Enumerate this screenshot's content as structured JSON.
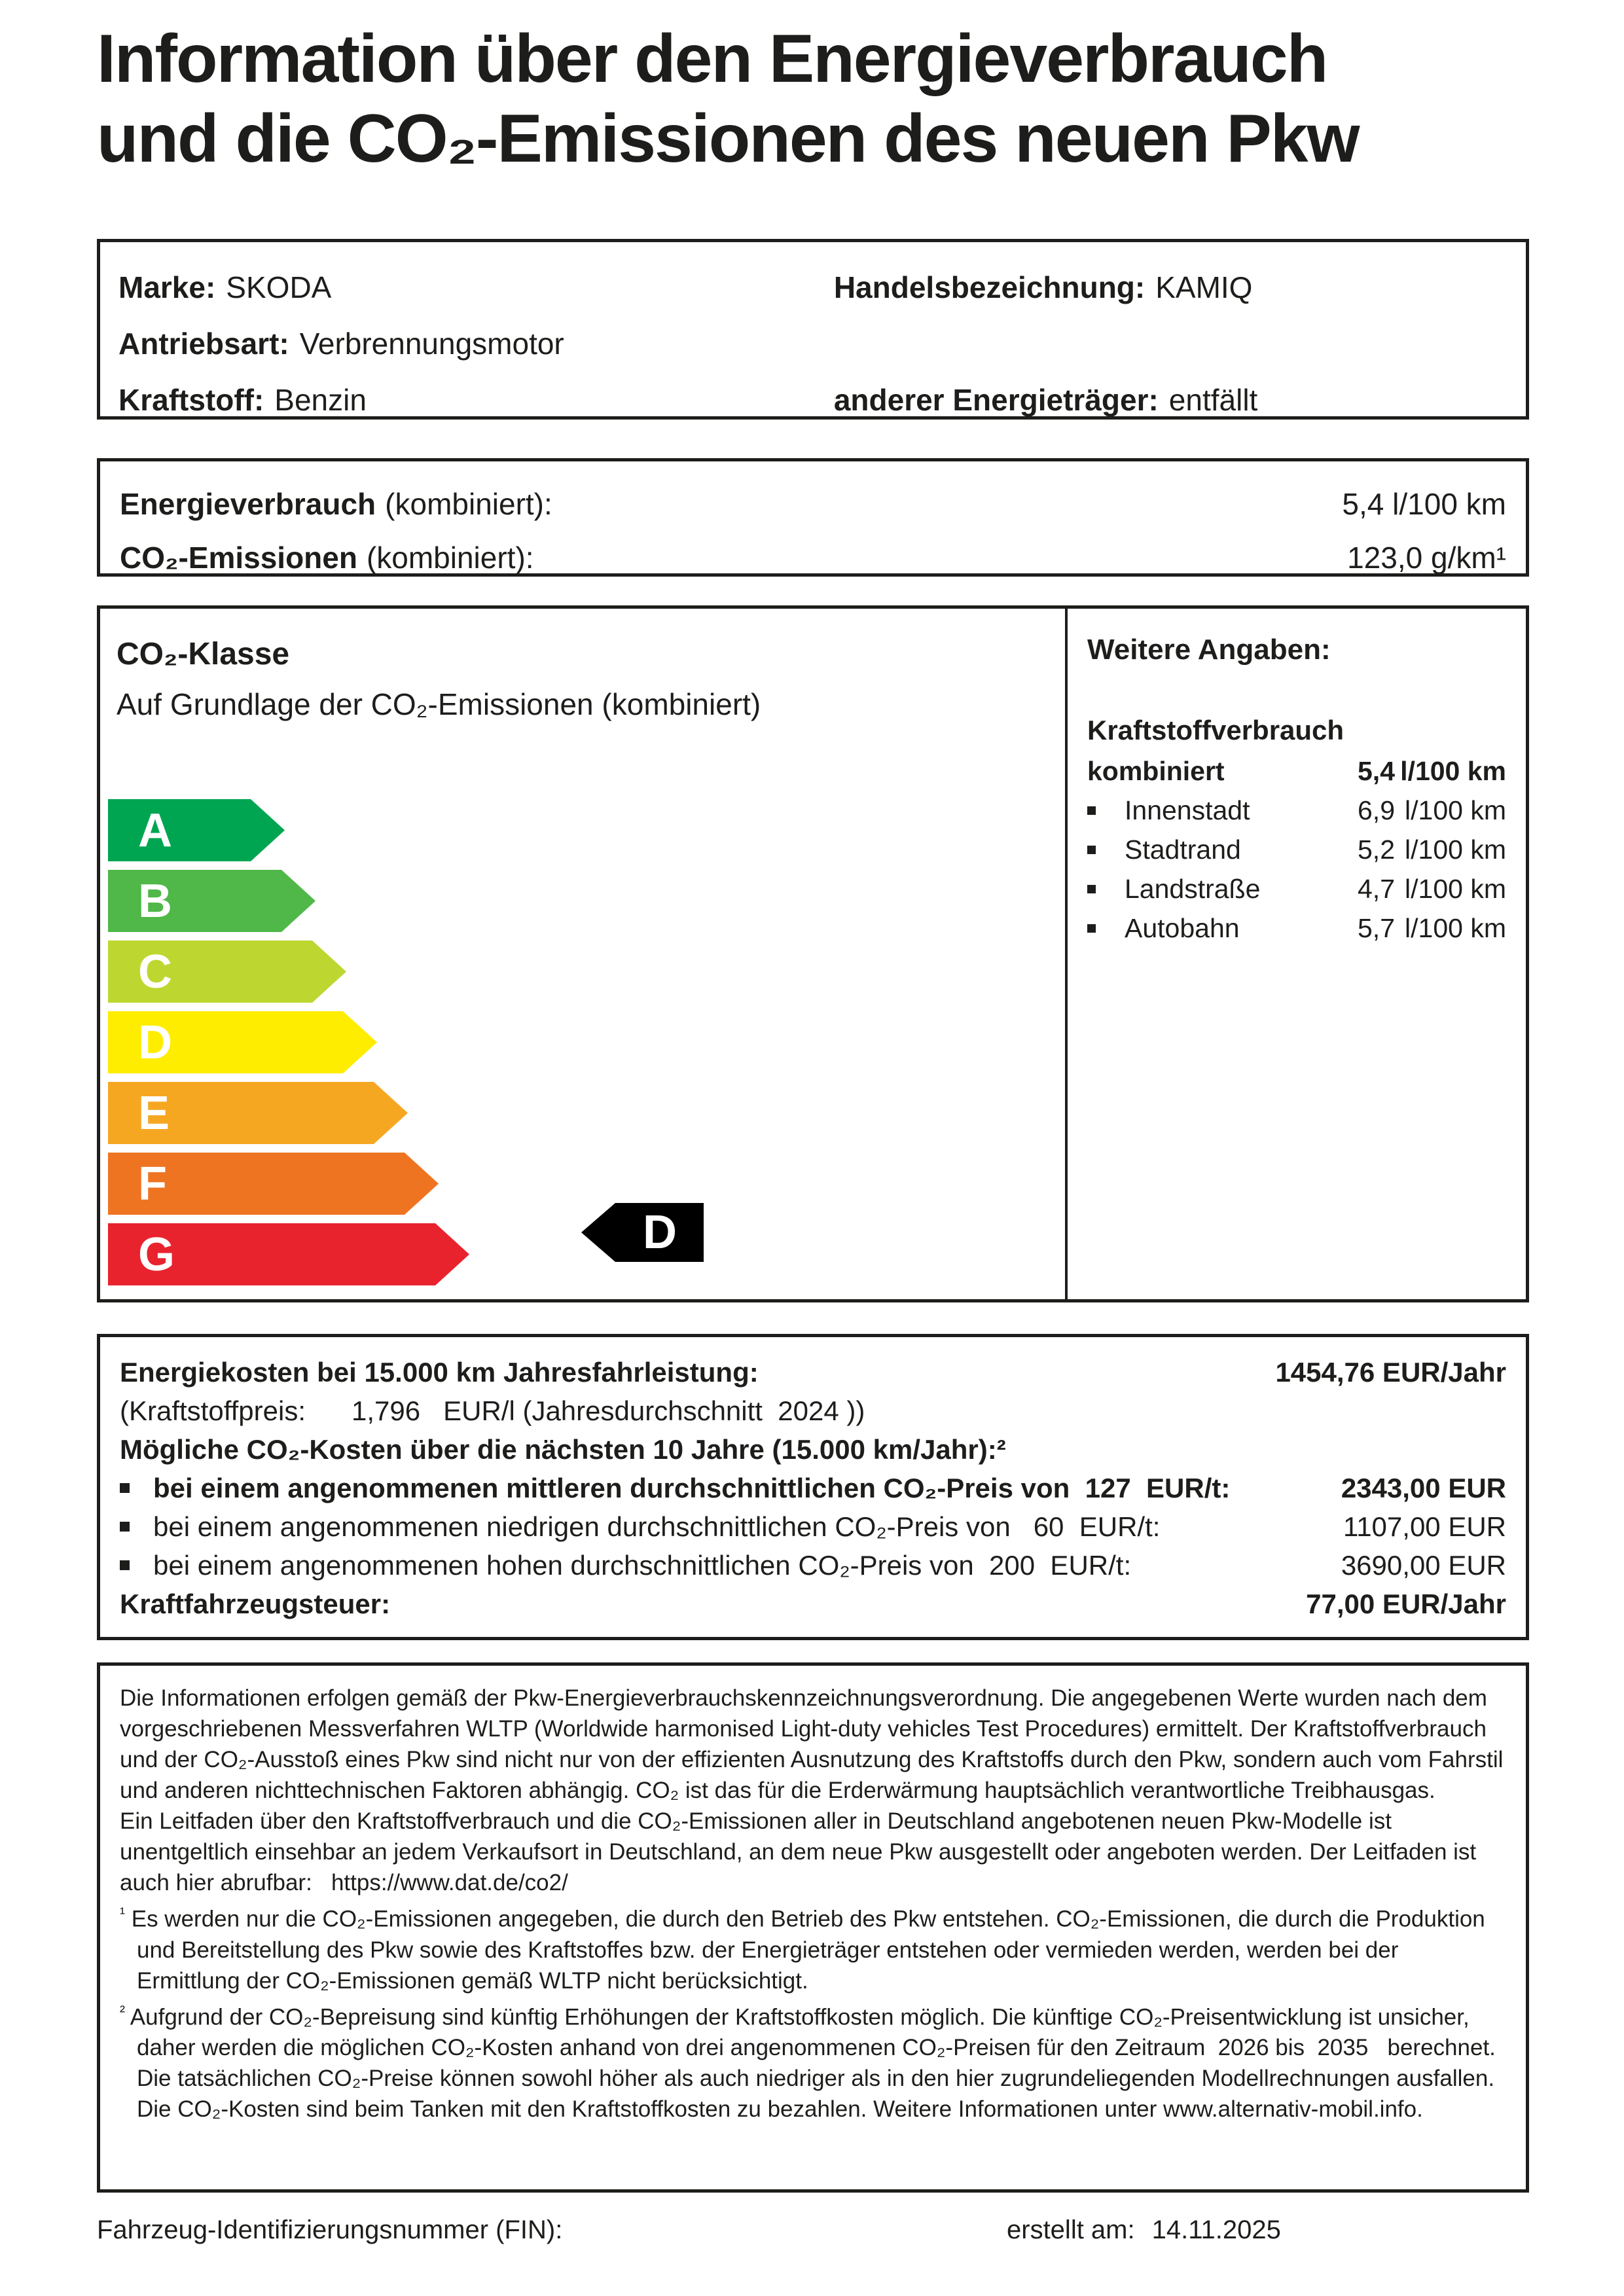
{
  "title": {
    "line1": "Information über den Energieverbrauch",
    "line2": "und die CO₂-Emissionen des neuen Pkw"
  },
  "vehicle": {
    "marke_label": "Marke:",
    "marke": "SKODA",
    "handels_label": "Handelsbezeichnung:",
    "handels": "KAMIQ",
    "antrieb_label": "Antriebsart:",
    "antrieb": "Verbrennungsmotor",
    "kraftstoff_label": "Kraftstoff:",
    "kraftstoff": "Benzin",
    "energietraeger_label": "anderer Energieträger:",
    "energietraeger": "entfällt"
  },
  "consumption": {
    "row1_label": "Energieverbrauch",
    "row1_paren": "(kombiniert):",
    "row1_value": "5,4 l/100 km",
    "row2_label": "CO₂-Emissionen",
    "row2_paren": "(kombiniert):",
    "row2_value": "123,0 g/km¹"
  },
  "co2class": {
    "heading": "CO₂-Klasse",
    "subtitle": "Auf Grundlage der CO₂-Emissionen (kombiniert)",
    "arrows": [
      {
        "letter": "A",
        "color": "#00a551"
      },
      {
        "letter": "B",
        "color": "#4fb848"
      },
      {
        "letter": "C",
        "color": "#bed730"
      },
      {
        "letter": "D",
        "color": "#ffed00"
      },
      {
        "letter": "E",
        "color": "#f6a722"
      },
      {
        "letter": "F",
        "color": "#ef7422"
      },
      {
        "letter": "G",
        "color": "#e8232d"
      }
    ],
    "indicator": {
      "letter": "D",
      "color": "#000000"
    }
  },
  "details": {
    "heading": "Weitere Angaben:",
    "subheading": "Kraftstoffverbrauch",
    "rows": [
      {
        "label": "kombiniert",
        "value": "5,4",
        "unit": "l/100 km"
      },
      {
        "label": "Innenstadt",
        "value": "6,9",
        "unit": "l/100 km"
      },
      {
        "label": "Stadtrand",
        "value": "5,2",
        "unit": "l/100 km"
      },
      {
        "label": "Landstraße",
        "value": "4,7",
        "unit": "l/100 km"
      },
      {
        "label": "Autobahn",
        "value": "5,7",
        "unit": "l/100 km"
      }
    ]
  },
  "costs": {
    "line1_label": "Energiekosten bei 15.000 km Jahresfahrleistung:",
    "line1_value": "1454,76 EUR/Jahr",
    "line2": "(Kraftstoffpreis:      1,796   EUR/l (Jahresdurchschnitt  2024 ))",
    "line3": "Mögliche CO₂-Kosten über die nächsten 10 Jahre (15.000 km/Jahr):²",
    "bullets": [
      {
        "text": "bei einem angenommenen mittleren durchschnittlichen CO₂-Preis von  127  EUR/t:",
        "value": "2343,00 EUR"
      },
      {
        "text": "bei einem angenommenen niedrigen durchschnittlichen CO₂-Preis von   60  EUR/t:",
        "value": "1107,00 EUR"
      },
      {
        "text": "bei einem angenommenen hohen durchschnittlichen CO₂-Preis von  200  EUR/t:",
        "value": "3690,00 EUR"
      }
    ],
    "tax_label": "Kraftfahrzeugsteuer:",
    "tax_value": "77,00 EUR/Jahr"
  },
  "legal": {
    "p1": "Die Informationen erfolgen gemäß der Pkw-Energieverbrauchskennzeichnungsverordnung. Die angegebenen Werte wurden nach dem vorgeschriebenen Messverfahren WLTP (Worldwide harmonised Light-duty vehicles Test Procedures) ermittelt. Der Kraftstoffverbrauch und der CO₂-Ausstoß eines Pkw sind nicht nur von der effizienten Ausnutzung des Kraftstoffs durch den Pkw, sondern auch vom Fahrstil und anderen nichttechnischen Faktoren abhängig. CO₂ ist das für die Erderwärmung hauptsächlich verantwortliche Treibhausgas.",
    "p2": "Ein Leitfaden über den Kraftstoffverbrauch und die CO₂-Emissionen aller in Deutschland angebotenen neuen Pkw-Modelle ist unentgeltlich einsehbar an jedem Verkaufsort in Deutschland, an dem neue Pkw ausgestellt oder angeboten werden. Der Leitfaden ist auch hier abrufbar:   https://www.dat.de/co2/",
    "fn1_marker": "¹",
    "fn1": "Es werden nur die CO₂-Emissionen angegeben, die durch den Betrieb des Pkw entstehen. CO₂-Emissionen, die durch die Produktion und Bereitstellung des Pkw sowie des Kraftstoffes bzw. der Energieträger entstehen oder vermieden werden, werden bei der Ermittlung der CO₂-Emissionen gemäß WLTP nicht berücksichtigt.",
    "fn2_marker": "²",
    "fn2": "Aufgrund der CO₂-Bepreisung sind künftig Erhöhungen der Kraftstoffkosten möglich. Die künftige CO₂-Preisentwicklung ist unsicher, daher werden die möglichen CO₂-Kosten anhand von drei angenommenen CO₂-Preisen für den Zeitraum  2026 bis  2035   berechnet. Die tatsächlichen CO₂-Preise können sowohl höher als auch niedriger als in den hier zugrundeliegenden Modellrechnungen ausfallen. Die CO₂-Kosten sind beim Tanken mit den Kraftstoffkosten zu bezahlen. Weitere Informationen unter www.alternativ-mobil.info."
  },
  "footer": {
    "fin_label": "Fahrzeug-Identifizierungsnummer (FIN):",
    "created_label": "erstellt am:",
    "created_value": "14.11.2025"
  }
}
